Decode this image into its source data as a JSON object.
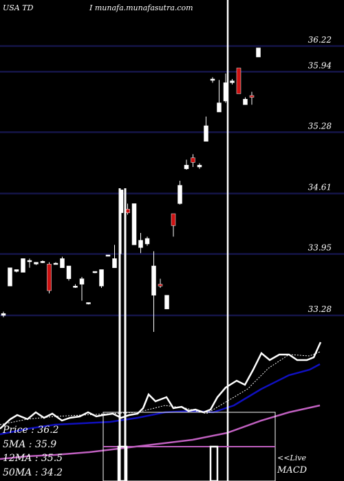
{
  "header": {
    "symbol_label": "USA TD",
    "site_label": "I munafa.munafasutra.com"
  },
  "legend": {
    "price": "Price   : 36.2",
    "ma5": "5MA : 35.9",
    "ma12": "12MA : 35.5",
    "ma50": "50MA : 34.2"
  },
  "live_label": "<<Live",
  "macd_label": "MACD",
  "colors": {
    "background": "#000000",
    "gridline": "#15154a",
    "up_candle": "#ffffff",
    "down_candle": "#cc1111",
    "ma_fast": "#ffffff",
    "ma_medium": "#1010c0",
    "ma_slow": "#c060c0"
  },
  "chart_data": {
    "type": "candlestick",
    "y_axis_side": "right",
    "ylim": [
      32.5,
      36.8
    ],
    "price_levels": [
      36.22,
      35.94,
      35.28,
      34.61,
      33.95,
      33.28
    ],
    "price_level_labels": [
      "36.22",
      "35.94",
      "35.28",
      "34.61",
      "33.95",
      "33.28"
    ],
    "candles": [
      {
        "o": 33.3,
        "h": 33.32,
        "l": 33.26,
        "c": 33.28,
        "dir": "up"
      },
      {
        "o": 33.8,
        "h": 33.8,
        "l": 33.6,
        "c": 33.6,
        "dir": "up"
      },
      {
        "o": 33.78,
        "h": 33.78,
        "l": 33.75,
        "c": 33.76,
        "dir": "up"
      },
      {
        "o": 33.9,
        "h": 33.9,
        "l": 33.75,
        "c": 33.75,
        "dir": "up"
      },
      {
        "o": 33.88,
        "h": 33.9,
        "l": 33.8,
        "c": 33.88,
        "dir": "up"
      },
      {
        "o": 33.86,
        "h": 33.86,
        "l": 33.83,
        "c": 33.84,
        "dir": "up"
      },
      {
        "o": 33.87,
        "h": 33.88,
        "l": 33.85,
        "c": 33.87,
        "dir": "up"
      },
      {
        "o": 33.84,
        "h": 33.86,
        "l": 33.52,
        "c": 33.55,
        "dir": "down"
      },
      {
        "o": 33.85,
        "h": 33.86,
        "l": 33.84,
        "c": 33.85,
        "dir": "up"
      },
      {
        "o": 33.9,
        "h": 33.92,
        "l": 33.8,
        "c": 33.8,
        "dir": "up"
      },
      {
        "o": 33.82,
        "h": 33.82,
        "l": 33.66,
        "c": 33.68,
        "dir": "up"
      },
      {
        "o": 33.6,
        "h": 33.62,
        "l": 33.58,
        "c": 33.6,
        "dir": "up"
      },
      {
        "o": 33.68,
        "h": 33.7,
        "l": 33.44,
        "c": 33.62,
        "dir": "up"
      },
      {
        "o": 33.42,
        "h": 33.42,
        "l": 33.4,
        "c": 33.41,
        "dir": "up"
      },
      {
        "o": 33.76,
        "h": 33.76,
        "l": 33.74,
        "c": 33.75,
        "dir": "up"
      },
      {
        "o": 33.78,
        "h": 33.78,
        "l": 33.58,
        "c": 33.6,
        "dir": "up"
      },
      {
        "o": 33.94,
        "h": 33.94,
        "l": 33.94,
        "c": 33.94,
        "dir": "up"
      },
      {
        "o": 33.9,
        "h": 34.05,
        "l": 33.8,
        "c": 33.8,
        "dir": "up"
      },
      {
        "o": 34.4,
        "h": 34.65,
        "l": 33.95,
        "c": 34.65,
        "dir": "up"
      },
      {
        "o": 34.44,
        "h": 34.5,
        "l": 34.38,
        "c": 34.4,
        "dir": "down"
      },
      {
        "o": 34.5,
        "h": 34.5,
        "l": 34.05,
        "c": 34.05,
        "dir": "up"
      },
      {
        "o": 34.02,
        "h": 34.18,
        "l": 33.96,
        "c": 34.1,
        "dir": "up"
      },
      {
        "o": 34.06,
        "h": 34.14,
        "l": 34.04,
        "c": 34.12,
        "dir": "up"
      },
      {
        "o": 33.82,
        "h": 33.98,
        "l": 33.1,
        "c": 33.5,
        "dir": "up"
      },
      {
        "o": 33.62,
        "h": 33.68,
        "l": 33.58,
        "c": 33.6,
        "dir": "down"
      },
      {
        "o": 33.5,
        "h": 33.5,
        "l": 33.35,
        "c": 33.35,
        "dir": "up"
      },
      {
        "o": 34.39,
        "h": 34.39,
        "l": 34.14,
        "c": 34.26,
        "dir": "down"
      },
      {
        "o": 34.7,
        "h": 34.75,
        "l": 34.49,
        "c": 34.5,
        "dir": "up"
      },
      {
        "o": 34.92,
        "h": 34.98,
        "l": 34.87,
        "c": 34.88,
        "dir": "up"
      },
      {
        "o": 35.0,
        "h": 35.04,
        "l": 34.9,
        "c": 34.95,
        "dir": "down"
      },
      {
        "o": 34.92,
        "h": 34.94,
        "l": 34.88,
        "c": 34.9,
        "dir": "up"
      },
      {
        "o": 35.35,
        "h": 35.45,
        "l": 35.18,
        "c": 35.18,
        "dir": "up"
      },
      {
        "o": 35.86,
        "h": 35.88,
        "l": 35.82,
        "c": 35.86,
        "dir": "up"
      },
      {
        "o": 35.6,
        "h": 35.85,
        "l": 35.5,
        "c": 35.5,
        "dir": "up"
      },
      {
        "o": 35.82,
        "h": 35.92,
        "l": 35.6,
        "c": 35.62,
        "dir": "up"
      },
      {
        "o": 35.84,
        "h": 35.86,
        "l": 35.8,
        "c": 35.82,
        "dir": "up"
      },
      {
        "o": 35.98,
        "h": 35.98,
        "l": 35.7,
        "c": 35.7,
        "dir": "down"
      },
      {
        "o": 35.64,
        "h": 35.66,
        "l": 35.58,
        "c": 35.58,
        "dir": "up"
      },
      {
        "o": 35.68,
        "h": 35.72,
        "l": 35.58,
        "c": 35.66,
        "dir": "down"
      },
      {
        "o": 36.2,
        "h": 36.2,
        "l": 36.1,
        "c": 36.1,
        "dir": "up"
      }
    ]
  }
}
